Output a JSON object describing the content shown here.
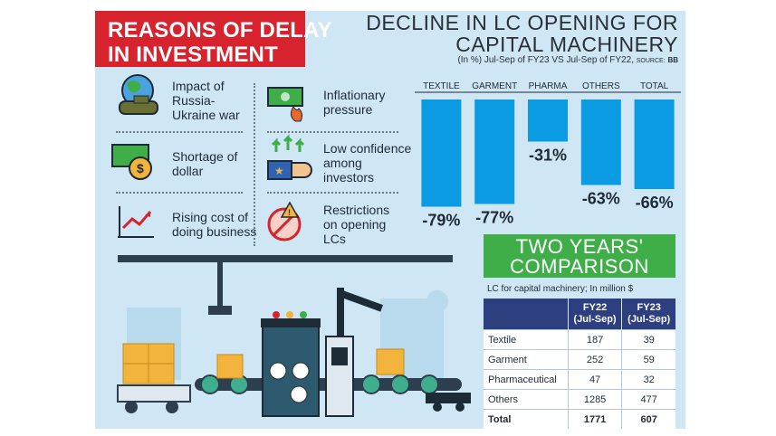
{
  "banner": {
    "line1": "REASONS OF DELAY",
    "line2": "IN INVESTMENT"
  },
  "reasons": [
    {
      "text": "Impact of\nRussia-\nUkraine war",
      "icon": "globe-tank-icon"
    },
    {
      "text": "Inflationary\npressure",
      "icon": "burning-money-icon"
    },
    {
      "text": "Shortage of\ndollar",
      "icon": "dollar-coins-icon"
    },
    {
      "text": "Low confidence\namong\ninvestors",
      "icon": "thumbs-up-arrows-icon"
    },
    {
      "text": "Rising cost of\ndoing business",
      "icon": "rising-chart-icon"
    },
    {
      "text": "Restrictions\non opening\nLCs",
      "icon": "stop-hand-warning-icon"
    }
  ],
  "colors": {
    "bar": "#0b9be3",
    "banner_red": "#d7232e",
    "banner_green": "#3fae49",
    "table_header": "#2e3f7f",
    "panel_bg": "#cfe7f5"
  },
  "chart_data": [
    {
      "type": "bar",
      "title": "DECLINE IN LC OPENING FOR CAPITAL MACHINERY",
      "title_lines": [
        "DECLINE IN LC OPENING FOR",
        "CAPITAL MACHINERY"
      ],
      "subtitle": "(In %) Jul-Sep of FY23 VS Jul-Sep of FY22,",
      "source_label": "SOURCE:",
      "source": "BB",
      "categories": [
        "TEXTILE",
        "GARMENT",
        "PHARMA",
        "OTHERS",
        "TOTAL"
      ],
      "values": [
        -79,
        -77,
        -31,
        -63,
        -66
      ],
      "value_labels": [
        "-79%",
        "-77%",
        "-31%",
        "-63%",
        "-66%"
      ],
      "ylim": [
        -100,
        0
      ],
      "grid": false,
      "legend": "none"
    },
    {
      "type": "table",
      "title_lines": [
        "TWO YEARS'",
        "COMPARISON"
      ],
      "caption": "LC for capital machinery; In million $",
      "headers": [
        "",
        "FY22\n(Jul-Sep)",
        "FY23\n(Jul-Sep)"
      ],
      "header_lines": [
        [
          "",
          ""
        ],
        [
          "FY22",
          "(Jul-Sep)"
        ],
        [
          "FY23",
          "(Jul-Sep)"
        ]
      ],
      "rows": [
        [
          "Textile",
          "187",
          "39"
        ],
        [
          "Garment",
          "252",
          "59"
        ],
        [
          "Pharmaceutical",
          "47",
          "32"
        ],
        [
          "Others",
          "1285",
          "477"
        ],
        [
          "Total",
          "1771",
          "607"
        ]
      ]
    }
  ]
}
